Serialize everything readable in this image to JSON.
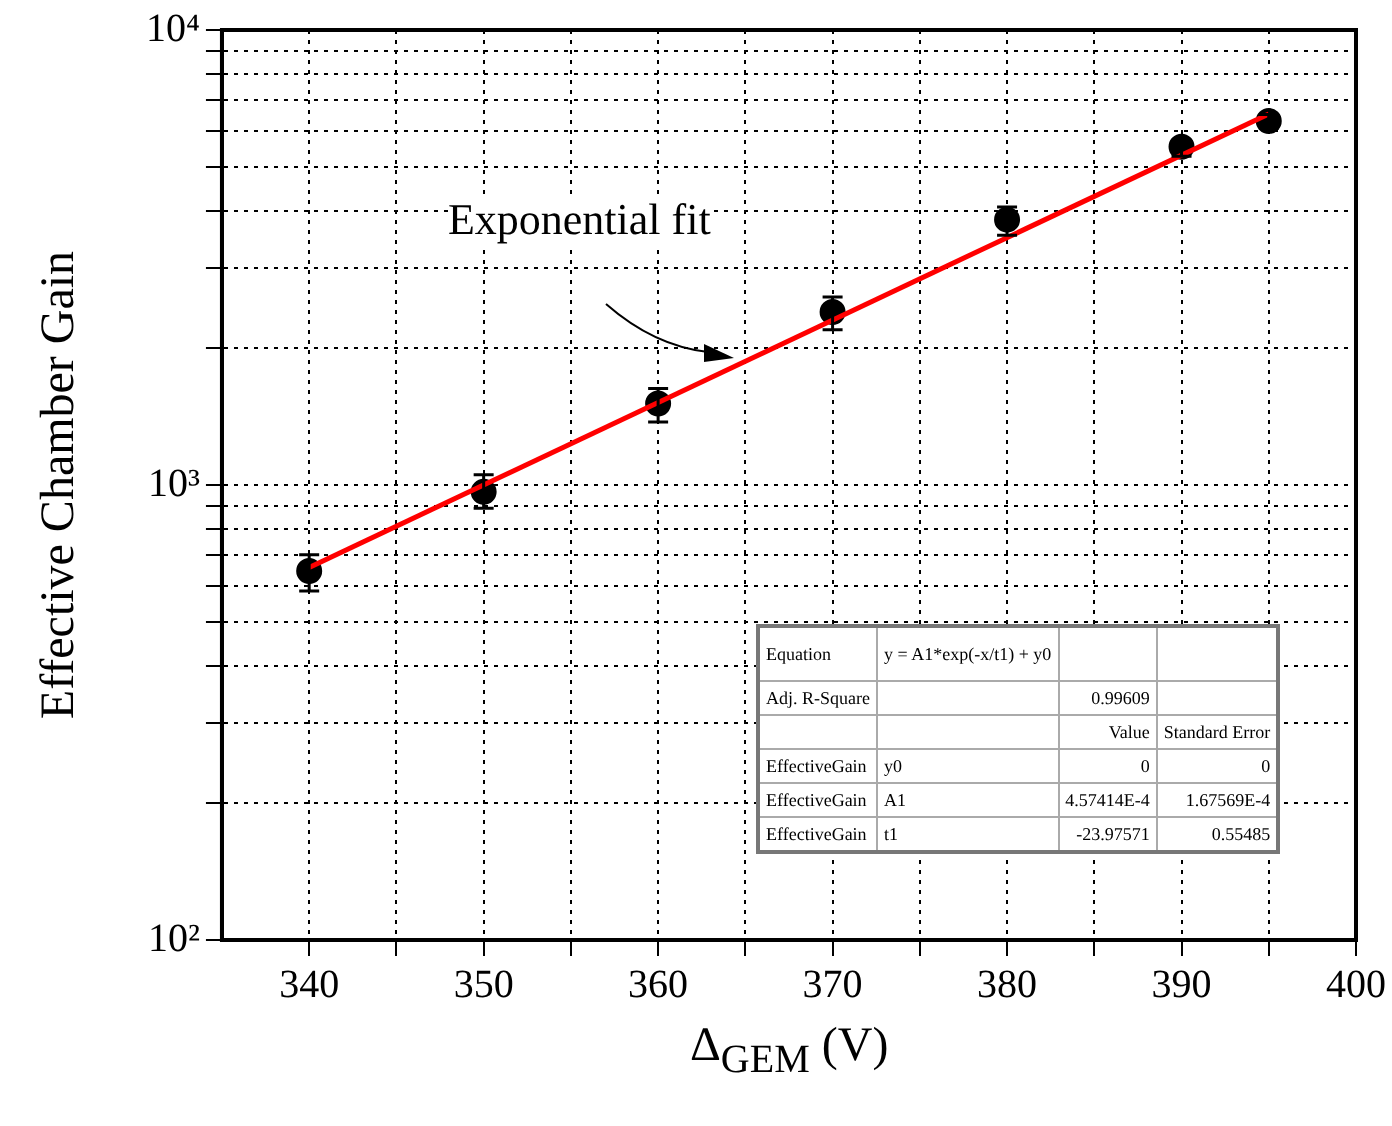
{
  "chart_data": {
    "type": "scatter",
    "xlabel": "Δ$_{GEM}$ (V)",
    "ylabel": "Effective Chamber Gain",
    "xlim": [
      335,
      400
    ],
    "xticks": [
      340,
      {
        "value": 345,
        "label": null
      },
      350,
      {
        "value": 355,
        "label": null
      },
      360,
      {
        "value": 365,
        "label": null
      },
      370,
      {
        "value": 375,
        "label": null
      },
      380,
      {
        "value": 385,
        "label": null
      },
      390,
      {
        "value": 395,
        "label": null
      },
      400
    ],
    "ylim": [
      100,
      10000
    ],
    "log": "y",
    "yticks": [
      {
        "value": 100,
        "label": "10²"
      },
      {
        "value": 200,
        "label": null
      },
      {
        "value": 300,
        "label": null
      },
      {
        "value": 400,
        "label": null
      },
      {
        "value": 500,
        "label": null
      },
      {
        "value": 600,
        "label": null
      },
      {
        "value": 700,
        "label": null
      },
      {
        "value": 800,
        "label": null
      },
      {
        "value": 900,
        "label": null
      },
      {
        "value": 1000,
        "label": "10³"
      },
      {
        "value": 2000,
        "label": null
      },
      {
        "value": 3000,
        "label": null
      },
      {
        "value": 4000,
        "label": null
      },
      {
        "value": 5000,
        "label": null
      },
      {
        "value": 6000,
        "label": null
      },
      {
        "value": 7000,
        "label": null
      },
      {
        "value": 8000,
        "label": null
      },
      {
        "value": 9000,
        "label": null
      },
      {
        "value": 10000,
        "label": "10⁴"
      }
    ],
    "grid": true,
    "legend": false,
    "series": [
      {
        "marker": "circle",
        "color": "#000000",
        "x": [
          340,
          350,
          360,
          370,
          380,
          390,
          395
        ],
        "values": [
          647,
          966,
          1510,
          2400,
          3830,
          5540,
          6310
        ],
        "errors": [
          [
            585,
            703
          ],
          [
            889,
            1053
          ],
          [
            1375,
            1630
          ],
          [
            2195,
            2590
          ],
          [
            3540,
            4085
          ],
          [
            5280,
            5730
          ],
          [
            6080,
            6520
          ]
        ]
      },
      {
        "type": "line",
        "color": "#ff0000",
        "x": [
          340,
          395
        ],
        "values": [
          659,
          6540
        ]
      }
    ],
    "annotations": [
      {
        "text": "Exponential fit",
        "x": 364,
        "y": 1900
      },
      "Equation\ty = A1*exp(-x/t1) + y0\t\t\nAdj. R-Square\t\t0.99609\t\n\t\tValue\tStandard Error\nEffectiveGain\ty0\t0\t0\nEffectiveGain\tA1\t4.57414E-4\t1.67569E-4\nEffectiveGain\tt1\t-23.97571\t0.55485"
    ]
  }
}
